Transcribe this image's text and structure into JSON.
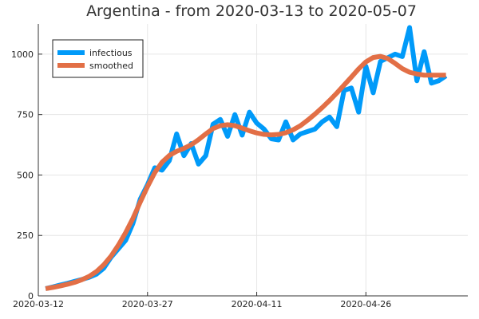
{
  "chart_data": {
    "type": "line",
    "title": "Argentina - from 2020-03-13 to 2020-05-07",
    "xlabel": "",
    "ylabel": "",
    "xlim": [
      "2020-03-12",
      "2020-05-10"
    ],
    "ylim": [
      0,
      1125
    ],
    "x_ticks": [
      "2020-03-12",
      "2020-03-27",
      "2020-04-11",
      "2020-04-26"
    ],
    "y_ticks": [
      0,
      250,
      500,
      750,
      1000
    ],
    "grid": true,
    "legend": {
      "position": "top-left"
    },
    "colors": {
      "infectious": "#009af9",
      "smoothed": "#e26f46"
    },
    "x": [
      "2020-03-13",
      "2020-03-14",
      "2020-03-15",
      "2020-03-16",
      "2020-03-17",
      "2020-03-18",
      "2020-03-19",
      "2020-03-20",
      "2020-03-21",
      "2020-03-22",
      "2020-03-23",
      "2020-03-24",
      "2020-03-25",
      "2020-03-26",
      "2020-03-27",
      "2020-03-28",
      "2020-03-29",
      "2020-03-30",
      "2020-03-31",
      "2020-04-01",
      "2020-04-02",
      "2020-04-03",
      "2020-04-04",
      "2020-04-05",
      "2020-04-06",
      "2020-04-07",
      "2020-04-08",
      "2020-04-09",
      "2020-04-10",
      "2020-04-11",
      "2020-04-12",
      "2020-04-13",
      "2020-04-14",
      "2020-04-15",
      "2020-04-16",
      "2020-04-17",
      "2020-04-18",
      "2020-04-19",
      "2020-04-20",
      "2020-04-21",
      "2020-04-22",
      "2020-04-23",
      "2020-04-24",
      "2020-04-25",
      "2020-04-26",
      "2020-04-27",
      "2020-04-28",
      "2020-04-29",
      "2020-04-30",
      "2020-05-01",
      "2020-05-02",
      "2020-05-03",
      "2020-05-04",
      "2020-05-05",
      "2020-05-06",
      "2020-05-07"
    ],
    "series": [
      {
        "name": "infectious",
        "values": [
          30,
          37,
          45,
          52,
          60,
          68,
          77,
          90,
          115,
          160,
          195,
          230,
          300,
          400,
          460,
          530,
          520,
          560,
          670,
          580,
          630,
          545,
          580,
          710,
          730,
          660,
          750,
          665,
          760,
          715,
          690,
          650,
          645,
          720,
          645,
          670,
          680,
          690,
          720,
          740,
          700,
          850,
          860,
          760,
          950,
          840,
          970,
          985,
          1000,
          990,
          1110,
          890,
          1010,
          880,
          890,
          910
        ],
        "color": "#009af9"
      },
      {
        "name": "smoothed",
        "values": [
          30,
          35,
          41,
          48,
          56,
          67,
          81,
          101,
          129,
          165,
          210,
          262,
          321,
          388,
          452,
          510,
          553,
          581,
          598,
          610,
          625,
          646,
          670,
          692,
          704,
          708,
          704,
          694,
          683,
          674,
          668,
          666,
          668,
          675,
          687,
          704,
          727,
          752,
          779,
          808,
          839,
          872,
          905,
          939,
          968,
          986,
          991,
          982,
          962,
          940,
          925,
          918,
          913,
          913,
          913,
          913
        ],
        "color": "#e26f46"
      }
    ]
  }
}
